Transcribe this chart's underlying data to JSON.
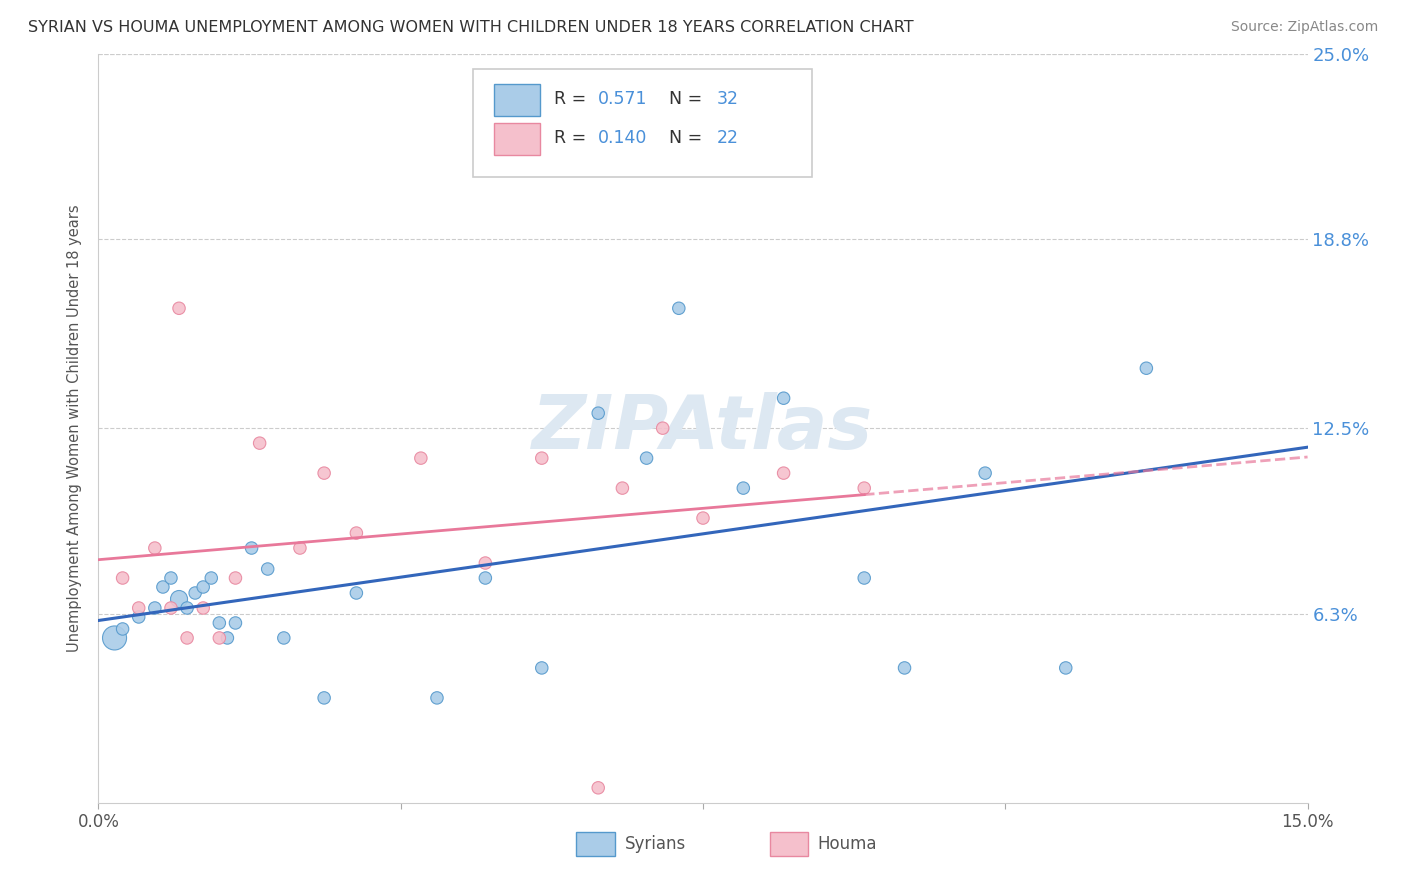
{
  "title": "SYRIAN VS HOUMA UNEMPLOYMENT AMONG WOMEN WITH CHILDREN UNDER 18 YEARS CORRELATION CHART",
  "source": "Source: ZipAtlas.com",
  "ylabel": "Unemployment Among Women with Children Under 18 years",
  "xlim": [
    0.0,
    15.0
  ],
  "ylim": [
    0.0,
    25.0
  ],
  "xtick_positions": [
    0.0,
    3.75,
    7.5,
    11.25,
    15.0
  ],
  "xtick_labels": [
    "0.0%",
    "",
    "",
    "",
    "15.0%"
  ],
  "ytick_labels": [
    "6.3%",
    "12.5%",
    "18.8%",
    "25.0%"
  ],
  "yticks": [
    6.3,
    12.5,
    18.8,
    25.0
  ],
  "watermark": "ZIPAtlas",
  "syrian_color": "#aacce8",
  "syrian_edge_color": "#5599cc",
  "syrian_line_color": "#3366bb",
  "houma_color": "#f5c0cc",
  "houma_edge_color": "#e888a0",
  "houma_line_color": "#e8789a",
  "syrian_x": [
    0.2,
    0.3,
    0.5,
    0.7,
    0.8,
    0.9,
    1.0,
    1.1,
    1.2,
    1.3,
    1.4,
    1.5,
    1.6,
    1.7,
    1.9,
    2.1,
    2.3,
    2.8,
    3.2,
    4.2,
    4.8,
    5.5,
    6.2,
    6.8,
    7.2,
    8.0,
    8.5,
    9.5,
    10.0,
    11.0,
    12.0,
    13.0
  ],
  "syrian_y": [
    5.5,
    5.8,
    6.2,
    6.5,
    7.2,
    7.5,
    6.8,
    6.5,
    7.0,
    7.2,
    7.5,
    6.0,
    5.5,
    6.0,
    8.5,
    7.8,
    5.5,
    3.5,
    7.0,
    3.5,
    7.5,
    4.5,
    13.0,
    11.5,
    16.5,
    10.5,
    13.5,
    7.5,
    4.5,
    11.0,
    4.5,
    14.5
  ],
  "syrian_sizes": [
    300,
    80,
    80,
    80,
    80,
    80,
    150,
    80,
    80,
    80,
    80,
    80,
    80,
    80,
    80,
    80,
    80,
    80,
    80,
    80,
    80,
    80,
    80,
    80,
    80,
    80,
    80,
    80,
    80,
    80,
    80,
    80
  ],
  "houma_x": [
    0.3,
    0.5,
    0.7,
    0.9,
    1.1,
    1.3,
    1.5,
    1.7,
    2.0,
    2.5,
    2.8,
    3.2,
    4.0,
    4.8,
    5.5,
    6.5,
    7.0,
    7.5,
    8.5,
    9.5,
    1.0,
    6.2
  ],
  "houma_y": [
    7.5,
    6.5,
    8.5,
    6.5,
    5.5,
    6.5,
    5.5,
    7.5,
    12.0,
    8.5,
    11.0,
    9.0,
    11.5,
    8.0,
    11.5,
    10.5,
    12.5,
    9.5,
    11.0,
    10.5,
    16.5,
    0.5
  ],
  "houma_sizes": [
    80,
    80,
    80,
    80,
    80,
    80,
    80,
    80,
    80,
    80,
    80,
    80,
    80,
    80,
    80,
    80,
    80,
    80,
    80,
    80,
    80,
    80
  ],
  "bg_color": "#ffffff",
  "grid_color": "#cccccc"
}
